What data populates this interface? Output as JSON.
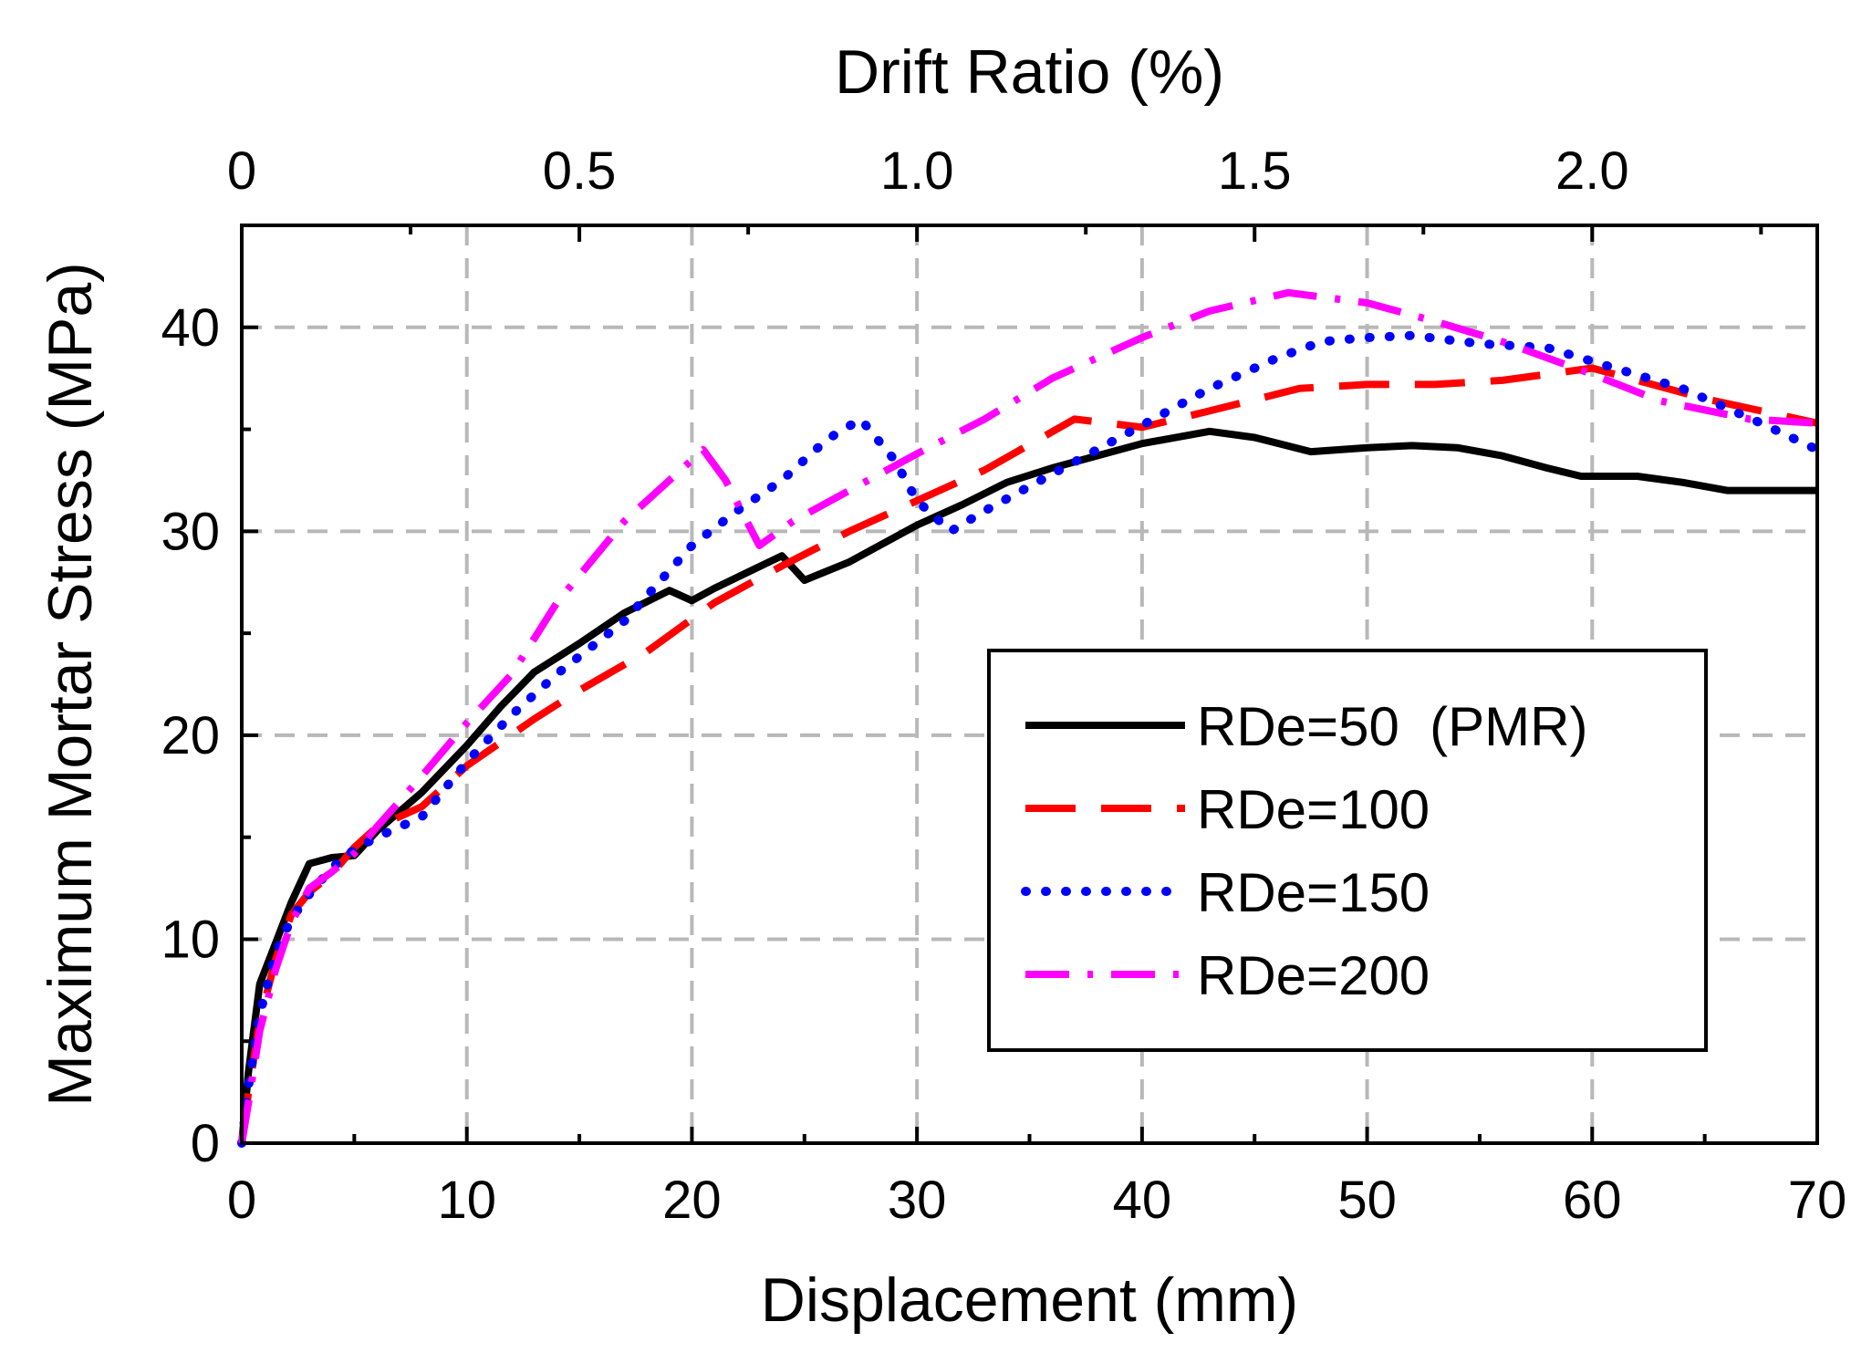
{
  "chart_data": {
    "type": "line",
    "title": "",
    "xlabel": "Displacement (mm)",
    "ylabel": "Maximum Mortar Stress (MPa)",
    "x2label": "Drift Ratio (%)",
    "xlim": [
      0,
      70
    ],
    "ylim": [
      0,
      45
    ],
    "x2lim": [
      0,
      2.3333
    ],
    "xticks": [
      0,
      10,
      20,
      30,
      40,
      50,
      60,
      70
    ],
    "xtick_labels": [
      "0",
      "10",
      "20",
      "30",
      "40",
      "50",
      "60",
      "70"
    ],
    "yticks": [
      0,
      10,
      20,
      30,
      40
    ],
    "ytick_labels": [
      "0",
      "10",
      "20",
      "30",
      "40"
    ],
    "x2ticks": [
      0,
      0.5,
      1.0,
      1.5,
      2.0
    ],
    "x2tick_labels": [
      "0",
      "0.5",
      "1.0",
      "1.5",
      "2.0"
    ],
    "grid": true,
    "legend_position": "lower-right",
    "series": [
      {
        "name": "RDe=50  (PMR)",
        "color": "#000000",
        "style": "solid",
        "x": [
          0,
          0.3,
          0.8,
          1.5,
          2.2,
          3.0,
          4.0,
          5.0,
          6.0,
          8.0,
          10.0,
          11.5,
          13.0,
          15.0,
          17.0,
          19.0,
          20.0,
          21.0,
          22.5,
          24.0,
          24.5,
          25.0,
          27.0,
          30.0,
          32.0,
          34.0,
          36.0,
          38.0,
          40.0,
          43.0,
          45.0,
          47.5,
          50.0,
          52.0,
          54.0,
          56.0,
          58.0,
          59.5,
          62.0,
          64.0,
          66.0,
          67.0,
          70.0
        ],
        "y": [
          0,
          3.5,
          7.8,
          9.8,
          11.8,
          13.7,
          14.0,
          14.1,
          15.3,
          17.2,
          19.5,
          21.4,
          23.1,
          24.5,
          26.0,
          27.1,
          26.6,
          27.2,
          28.0,
          28.8,
          28.2,
          27.6,
          28.5,
          30.3,
          31.3,
          32.4,
          33.1,
          33.7,
          34.3,
          34.9,
          34.6,
          33.9,
          34.1,
          34.2,
          34.1,
          33.7,
          33.1,
          32.7,
          32.7,
          32.4,
          32.0,
          32.0,
          32.0
        ]
      },
      {
        "name": "RDe=100",
        "color": "#ff0000",
        "style": "dashed",
        "x": [
          0,
          0.3,
          0.8,
          1.5,
          2.2,
          3.0,
          4.0,
          5.0,
          6.0,
          8.0,
          10.0,
          13.0,
          15.0,
          18.0,
          21.0,
          24.0,
          27.0,
          30.0,
          33.0,
          37.0,
          40.0,
          43.0,
          47.0,
          50.0,
          53.0,
          56.0,
          60.0,
          65.0,
          70.0
        ],
        "y": [
          0,
          2.5,
          6.0,
          9.0,
          11.2,
          12.3,
          13.2,
          14.5,
          15.5,
          16.5,
          18.5,
          20.8,
          22.2,
          24.1,
          26.5,
          28.3,
          30.0,
          31.5,
          33.0,
          35.5,
          35.1,
          35.9,
          37.0,
          37.2,
          37.2,
          37.4,
          38.0,
          36.5,
          35.3
        ]
      },
      {
        "name": "RDe=150",
        "color": "#0000ff",
        "style": "dotted",
        "x": [
          0,
          0.3,
          0.8,
          1.5,
          2.2,
          3.0,
          4.0,
          5.0,
          6.0,
          8.0,
          10.0,
          12.0,
          14.0,
          17.0,
          20.0,
          22.0,
          24.0,
          26.0,
          27.5,
          29.0,
          30.0,
          31.5,
          33.0,
          36.0,
          40.0,
          43.0,
          46.0,
          48.0,
          50.0,
          52.0,
          55.0,
          58.0,
          61.0,
          64.0,
          67.5,
          70.0
        ],
        "y": [
          0,
          2.8,
          6.3,
          9.3,
          11.0,
          12.2,
          13.5,
          14.4,
          15.0,
          16.0,
          18.7,
          21.0,
          23.0,
          25.6,
          29.3,
          31.0,
          32.5,
          34.5,
          35.5,
          33.5,
          31.5,
          30.0,
          31.0,
          32.8,
          35.2,
          37.0,
          38.5,
          39.3,
          39.5,
          39.6,
          39.2,
          39.0,
          38.0,
          37.0,
          35.3,
          34.0
        ]
      },
      {
        "name": "RDe=200",
        "color": "#ff00ff",
        "style": "dashdot",
        "x": [
          0,
          0.3,
          0.8,
          1.5,
          2.2,
          3.0,
          4.0,
          5.0,
          6.0,
          8.0,
          10.0,
          12.0,
          14.0,
          17.0,
          20.5,
          21.5,
          23.0,
          24.5,
          27.0,
          30.0,
          33.0,
          36.0,
          40.0,
          43.0,
          46.5,
          50.0,
          53.0,
          56.0,
          60.0,
          63.0,
          67.0,
          70.0
        ],
        "y": [
          0,
          2.0,
          5.5,
          8.5,
          10.8,
          12.5,
          13.3,
          14.2,
          15.5,
          18.0,
          20.6,
          23.0,
          26.5,
          30.5,
          34.0,
          32.5,
          29.3,
          30.5,
          32.0,
          33.8,
          35.5,
          37.5,
          39.5,
          40.8,
          41.7,
          41.2,
          40.3,
          39.3,
          37.7,
          36.4,
          35.5,
          35.3
        ]
      }
    ]
  }
}
